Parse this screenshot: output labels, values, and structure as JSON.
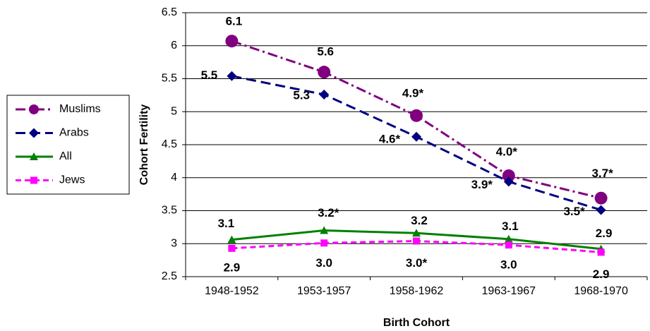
{
  "chart_data": {
    "type": "line",
    "categories": [
      "1948-1952",
      "1953-1957",
      "1958-1962",
      "1963-1967",
      "1968-1970"
    ],
    "xlabel": "Birth Cohort",
    "ylabel": "Cohort Fertility",
    "ylim": [
      2.5,
      6.5
    ],
    "yticks": [
      2.5,
      3.0,
      3.5,
      4.0,
      4.5,
      5.0,
      5.5,
      6.0,
      6.5
    ],
    "grid": true,
    "legend": "left",
    "series": [
      {
        "name": "Muslims",
        "color": "#800080",
        "marker": "circle",
        "dash": "dashdot",
        "values": [
          6.07,
          5.6,
          4.94,
          4.03,
          3.69
        ],
        "value_labels": [
          "6.1",
          "5.6",
          "4.9*",
          "4.0*",
          "3.7*"
        ]
      },
      {
        "name": "Arabs",
        "color": "#000080",
        "marker": "diamond",
        "dash": "dashed",
        "values": [
          5.54,
          5.26,
          4.62,
          3.94,
          3.51
        ],
        "value_labels": [
          "5.5",
          "5.3",
          "4.6*",
          "3.9*",
          "3.5*"
        ]
      },
      {
        "name": "All",
        "color": "#008000",
        "marker": "triangle",
        "dash": "solid",
        "values": [
          3.06,
          3.2,
          3.16,
          3.07,
          2.92
        ],
        "value_labels": [
          "3.1",
          "3.2*",
          "3.2",
          "3.1",
          "2.9"
        ]
      },
      {
        "name": "Jews",
        "color": "#ff00ff",
        "marker": "square",
        "dash": "dotted",
        "values": [
          2.93,
          3.01,
          3.04,
          2.98,
          2.87
        ],
        "value_labels": [
          "2.9",
          "3.0",
          "3.0*",
          "3.0",
          "2.9"
        ]
      }
    ]
  }
}
